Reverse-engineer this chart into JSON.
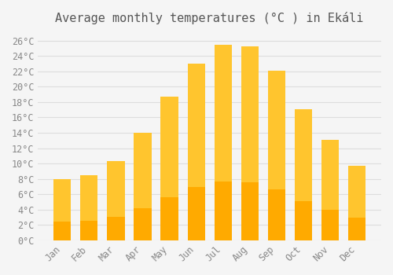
{
  "title": "Average monthly temperatures (°C ) in Ekáli",
  "months": [
    "Jan",
    "Feb",
    "Mar",
    "Apr",
    "May",
    "Jun",
    "Jul",
    "Aug",
    "Sep",
    "Oct",
    "Nov",
    "Dec"
  ],
  "values": [
    8.0,
    8.5,
    10.3,
    14.0,
    18.7,
    23.0,
    25.5,
    25.2,
    22.1,
    17.1,
    13.1,
    9.7
  ],
  "bar_color_top": "#FFC52E",
  "bar_color_bottom": "#FFAA00",
  "ylim": [
    0,
    27
  ],
  "yticks": [
    0,
    2,
    4,
    6,
    8,
    10,
    12,
    14,
    16,
    18,
    20,
    22,
    24,
    26
  ],
  "ytick_labels": [
    "0°C",
    "2°C",
    "4°C",
    "6°C",
    "8°C",
    "10°C",
    "12°C",
    "14°C",
    "16°C",
    "18°C",
    "20°C",
    "22°C",
    "24°C",
    "26°C"
  ],
  "bg_color": "#F5F5F5",
  "grid_color": "#DDDDDD",
  "title_fontsize": 11,
  "tick_fontsize": 8.5,
  "font_family": "monospace"
}
